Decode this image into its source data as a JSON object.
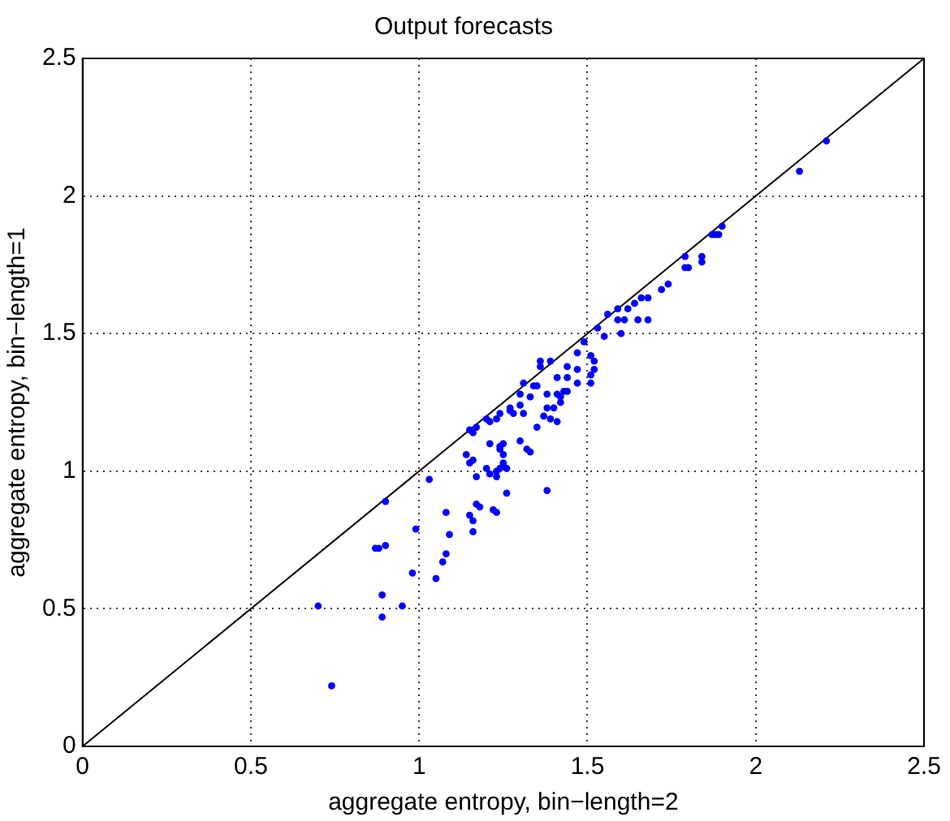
{
  "chart_data": {
    "type": "scatter",
    "title": "Output forecasts",
    "xlabel": "aggregate entropy, bin−length=2",
    "ylabel": "aggregate entropy, bin−length=1",
    "xlim": [
      0,
      2.5
    ],
    "ylim": [
      0,
      2.5
    ],
    "xticks": [
      0,
      0.5,
      1,
      1.5,
      2,
      2.5
    ],
    "yticks": [
      0,
      0.5,
      1,
      1.5,
      2,
      2.5
    ],
    "grid": true,
    "marker": "circle",
    "series": [
      {
        "type": "scatter",
        "color": "#0000ff",
        "x": [
          0.7,
          0.74,
          0.87,
          0.88,
          0.9,
          0.9,
          0.89,
          0.89,
          0.95,
          0.98,
          0.99,
          1.03,
          1.05,
          1.07,
          1.08,
          1.08,
          1.09,
          1.15,
          1.16,
          1.16,
          1.17,
          1.18,
          1.22,
          1.23,
          1.26,
          1.14,
          1.15,
          1.16,
          1.17,
          1.2,
          1.21,
          1.23,
          1.24,
          1.21,
          1.24,
          1.25,
          1.25,
          1.25,
          1.26,
          1.15,
          1.16,
          1.17,
          1.2,
          1.21,
          1.23,
          1.24,
          1.24,
          1.23,
          1.25,
          1.27,
          1.27,
          1.28,
          1.3,
          1.31,
          1.3,
          1.31,
          1.33,
          1.34,
          1.35,
          1.36,
          1.36,
          1.39,
          1.41,
          1.44,
          1.38,
          1.41,
          1.43,
          1.44,
          1.42,
          1.38,
          1.4,
          1.42,
          1.39,
          1.41,
          1.37,
          1.35,
          1.3,
          1.32,
          1.33,
          1.38,
          1.44,
          1.49,
          1.53,
          1.55,
          1.56,
          1.59,
          1.6,
          1.59,
          1.62,
          1.61,
          1.64,
          1.65,
          1.66,
          1.68,
          1.68,
          1.72,
          1.74,
          1.79,
          1.79,
          1.8,
          1.84,
          1.84,
          1.87,
          1.88,
          1.89,
          1.9,
          1.47,
          1.51,
          1.52,
          1.52,
          1.51,
          1.51,
          1.47,
          1.47,
          2.21,
          2.13
        ],
        "values": [
          0.51,
          0.22,
          0.72,
          0.72,
          0.73,
          0.89,
          0.55,
          0.47,
          0.51,
          0.63,
          0.79,
          0.97,
          0.61,
          0.67,
          0.7,
          0.85,
          0.77,
          0.84,
          0.82,
          0.78,
          0.88,
          0.87,
          0.86,
          0.85,
          0.92,
          1.06,
          1.03,
          1.04,
          0.98,
          1.01,
          0.99,
          0.98,
          1.01,
          1.1,
          1.09,
          1.1,
          1.06,
          1.03,
          1.01,
          1.15,
          1.14,
          1.16,
          1.19,
          1.18,
          1.19,
          1.21,
          1.08,
          1.0,
          1.02,
          1.23,
          1.22,
          1.21,
          1.24,
          1.21,
          1.28,
          1.32,
          1.27,
          1.31,
          1.31,
          1.38,
          1.4,
          1.4,
          1.34,
          1.34,
          1.28,
          1.28,
          1.29,
          1.29,
          1.27,
          1.23,
          1.23,
          1.25,
          1.19,
          1.18,
          1.2,
          1.16,
          1.11,
          1.08,
          1.07,
          0.93,
          1.38,
          1.47,
          1.52,
          1.49,
          1.57,
          1.55,
          1.5,
          1.59,
          1.59,
          1.55,
          1.61,
          1.55,
          1.63,
          1.63,
          1.55,
          1.66,
          1.68,
          1.78,
          1.74,
          1.74,
          1.78,
          1.76,
          1.86,
          1.86,
          1.86,
          1.89,
          1.43,
          1.42,
          1.4,
          1.37,
          1.35,
          1.32,
          1.32,
          1.37,
          2.2,
          2.09
        ]
      },
      {
        "type": "line",
        "color": "#000000",
        "marker": "none",
        "x": [
          0,
          2.5
        ],
        "values": [
          0,
          2.5
        ]
      }
    ]
  }
}
